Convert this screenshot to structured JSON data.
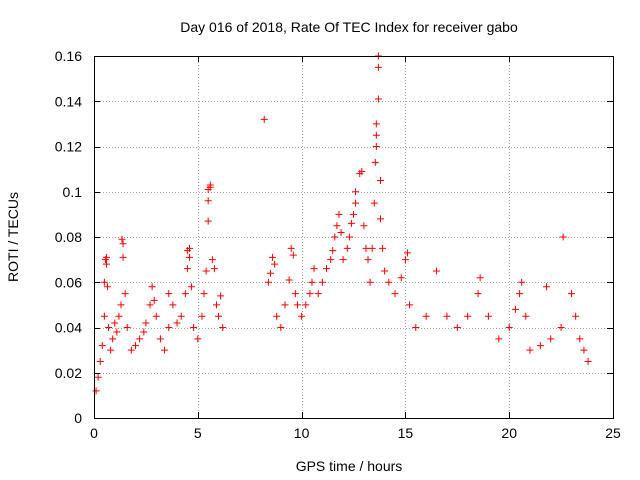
{
  "chart_data": {
    "type": "scatter",
    "title": "Day 016 of 2018, Rate Of TEC Index for receiver gabo",
    "xlabel": "GPS time / hours",
    "ylabel": "ROTI / TECUs",
    "xlim": [
      0,
      25
    ],
    "ylim": [
      0,
      0.16
    ],
    "xticks": [
      0,
      5,
      10,
      15,
      20,
      25
    ],
    "yticks": [
      0,
      0.02,
      0.04,
      0.06,
      0.08,
      0.1,
      0.12,
      0.14,
      0.16
    ],
    "xtick_labels": [
      "0",
      "5",
      "10",
      "15",
      "20",
      "25"
    ],
    "ytick_labels": [
      "0",
      "0.02",
      "0.04",
      "0.06",
      "0.08",
      "0.1",
      "0.12",
      "0.14",
      "0.16"
    ],
    "grid": true,
    "marker": "+",
    "series_color": "#ff0000",
    "data_gap_hours": [
      6.2,
      8.0
    ],
    "series": [
      {
        "points": [
          [
            0.1,
            0.012
          ],
          [
            0.2,
            0.018
          ],
          [
            0.3,
            0.025
          ],
          [
            0.4,
            0.032
          ],
          [
            0.5,
            0.045
          ],
          [
            0.5,
            0.06
          ],
          [
            0.55,
            0.07
          ],
          [
            0.6,
            0.071
          ],
          [
            0.6,
            0.068
          ],
          [
            0.65,
            0.058
          ],
          [
            0.7,
            0.04
          ],
          [
            0.8,
            0.03
          ],
          [
            0.9,
            0.035
          ],
          [
            1.0,
            0.042
          ],
          [
            1.1,
            0.038
          ],
          [
            1.2,
            0.045
          ],
          [
            1.3,
            0.05
          ],
          [
            1.35,
            0.079
          ],
          [
            1.4,
            0.077
          ],
          [
            1.4,
            0.071
          ],
          [
            1.5,
            0.055
          ],
          [
            1.6,
            0.04
          ],
          [
            1.8,
            0.03
          ],
          [
            2.0,
            0.032
          ],
          [
            2.2,
            0.035
          ],
          [
            2.4,
            0.038
          ],
          [
            2.5,
            0.042
          ],
          [
            2.7,
            0.05
          ],
          [
            2.8,
            0.058
          ],
          [
            2.9,
            0.052
          ],
          [
            3.0,
            0.045
          ],
          [
            3.2,
            0.035
          ],
          [
            3.4,
            0.03
          ],
          [
            3.6,
            0.04
          ],
          [
            3.6,
            0.055
          ],
          [
            3.8,
            0.05
          ],
          [
            4.0,
            0.042
          ],
          [
            4.2,
            0.045
          ],
          [
            4.4,
            0.055
          ],
          [
            4.5,
            0.066
          ],
          [
            4.5,
            0.074
          ],
          [
            4.6,
            0.075
          ],
          [
            4.6,
            0.071
          ],
          [
            4.7,
            0.058
          ],
          [
            4.8,
            0.04
          ],
          [
            5.0,
            0.035
          ],
          [
            5.2,
            0.045
          ],
          [
            5.3,
            0.055
          ],
          [
            5.4,
            0.065
          ],
          [
            5.5,
            0.087
          ],
          [
            5.5,
            0.096
          ],
          [
            5.5,
            0.101
          ],
          [
            5.6,
            0.103
          ],
          [
            5.6,
            0.102
          ],
          [
            5.7,
            0.07
          ],
          [
            5.8,
            0.066
          ],
          [
            5.9,
            0.05
          ],
          [
            6.0,
            0.045
          ],
          [
            6.1,
            0.054
          ],
          [
            6.2,
            0.04
          ],
          [
            8.2,
            0.132
          ],
          [
            8.4,
            0.06
          ],
          [
            8.5,
            0.064
          ],
          [
            8.6,
            0.071
          ],
          [
            8.7,
            0.068
          ],
          [
            8.8,
            0.045
          ],
          [
            9.0,
            0.04
          ],
          [
            9.2,
            0.05
          ],
          [
            9.4,
            0.061
          ],
          [
            9.5,
            0.075
          ],
          [
            9.6,
            0.072
          ],
          [
            9.7,
            0.055
          ],
          [
            9.8,
            0.05
          ],
          [
            10.0,
            0.045
          ],
          [
            10.2,
            0.05
          ],
          [
            10.4,
            0.055
          ],
          [
            10.5,
            0.06
          ],
          [
            10.6,
            0.066
          ],
          [
            10.8,
            0.055
          ],
          [
            11.0,
            0.06
          ],
          [
            11.2,
            0.066
          ],
          [
            11.4,
            0.07
          ],
          [
            11.5,
            0.074
          ],
          [
            11.6,
            0.08
          ],
          [
            11.7,
            0.085
          ],
          [
            11.8,
            0.09
          ],
          [
            11.9,
            0.082
          ],
          [
            12.0,
            0.07
          ],
          [
            12.2,
            0.075
          ],
          [
            12.3,
            0.08
          ],
          [
            12.4,
            0.086
          ],
          [
            12.5,
            0.09
          ],
          [
            12.6,
            0.095
          ],
          [
            12.6,
            0.1
          ],
          [
            12.8,
            0.108
          ],
          [
            12.9,
            0.109
          ],
          [
            13.0,
            0.085
          ],
          [
            13.1,
            0.075
          ],
          [
            13.2,
            0.07
          ],
          [
            13.3,
            0.06
          ],
          [
            13.4,
            0.075
          ],
          [
            13.5,
            0.095
          ],
          [
            13.55,
            0.113
          ],
          [
            13.6,
            0.12
          ],
          [
            13.6,
            0.125
          ],
          [
            13.6,
            0.13
          ],
          [
            13.7,
            0.141
          ],
          [
            13.7,
            0.155
          ],
          [
            13.7,
            0.16
          ],
          [
            13.8,
            0.105
          ],
          [
            13.8,
            0.088
          ],
          [
            13.9,
            0.075
          ],
          [
            14.0,
            0.065
          ],
          [
            14.2,
            0.06
          ],
          [
            14.5,
            0.055
          ],
          [
            14.8,
            0.062
          ],
          [
            15.0,
            0.07
          ],
          [
            15.1,
            0.073
          ],
          [
            15.2,
            0.05
          ],
          [
            15.5,
            0.04
          ],
          [
            16.0,
            0.045
          ],
          [
            16.5,
            0.065
          ],
          [
            17.0,
            0.045
          ],
          [
            17.5,
            0.04
          ],
          [
            18.0,
            0.045
          ],
          [
            18.5,
            0.055
          ],
          [
            18.6,
            0.062
          ],
          [
            19.0,
            0.045
          ],
          [
            19.5,
            0.035
          ],
          [
            20.0,
            0.04
          ],
          [
            20.3,
            0.048
          ],
          [
            20.5,
            0.055
          ],
          [
            20.6,
            0.06
          ],
          [
            20.8,
            0.045
          ],
          [
            21.0,
            0.03
          ],
          [
            21.5,
            0.032
          ],
          [
            21.8,
            0.058
          ],
          [
            22.0,
            0.035
          ],
          [
            22.5,
            0.04
          ],
          [
            22.6,
            0.08
          ],
          [
            23.0,
            0.055
          ],
          [
            23.2,
            0.045
          ],
          [
            23.4,
            0.035
          ],
          [
            23.6,
            0.03
          ],
          [
            23.8,
            0.025
          ]
        ]
      }
    ]
  }
}
